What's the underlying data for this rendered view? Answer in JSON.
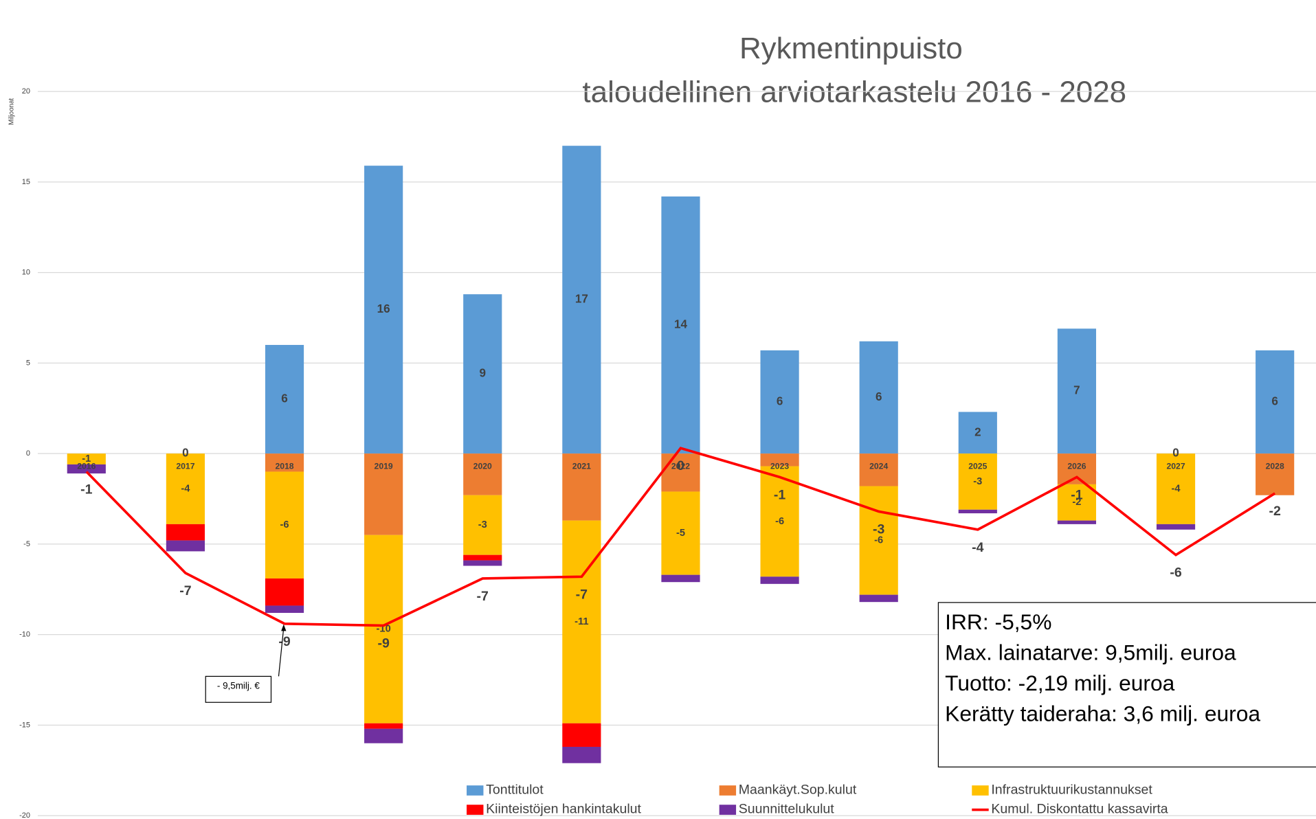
{
  "chart_data": {
    "type": "bar",
    "title": "Rykmentinpuisto",
    "subtitle": "taloudellinen arviotarkastelu 2016 - 2028",
    "y_axis_label": "Miljoonat",
    "categories": [
      "2016",
      "2017",
      "2018",
      "2019",
      "2020",
      "2021",
      "2022",
      "2023",
      "2024",
      "2025",
      "2026",
      "2027",
      "2028"
    ],
    "ylim": [
      -20,
      20
    ],
    "yticks": [
      -20,
      -15,
      -10,
      -5,
      0,
      5,
      10,
      15,
      20
    ],
    "grid": true,
    "legend": "bottom",
    "series": [
      {
        "name": "Tonttitulot",
        "color": "#5b9bd5",
        "values": [
          0,
          0,
          6.0,
          15.9,
          8.8,
          17.0,
          14.2,
          5.7,
          6.2,
          2.3,
          6.9,
          0,
          5.7
        ],
        "value_labels": [
          null,
          "0",
          "6",
          "16",
          "9",
          "17",
          "14",
          "6",
          "6",
          "2",
          "7",
          "0",
          "6"
        ]
      },
      {
        "name": "Maankäyt.Sop.kulut",
        "color": "#ed7d31",
        "values": [
          0,
          0,
          -1.0,
          -4.5,
          -2.3,
          -3.7,
          -2.1,
          -0.7,
          -1.8,
          0,
          -1.7,
          0,
          -2.3
        ]
      },
      {
        "name": "Infrastruktuurikustannukset",
        "color": "#ffc000",
        "values": [
          -0.6,
          -3.9,
          -5.9,
          -10.4,
          -3.3,
          -11.2,
          -4.6,
          -6.1,
          -6.0,
          -3.1,
          -2.0,
          -3.9,
          0
        ],
        "value_labels": [
          "-1",
          "-4",
          "-6",
          "-10",
          "-3",
          "-11",
          "-5",
          "-6",
          "-6",
          "-3",
          "-2",
          "-4",
          null
        ]
      },
      {
        "name": "Kiinteistöjen hankintakulut",
        "color": "#ff0000",
        "values": [
          0,
          -0.9,
          -1.5,
          -0.3,
          -0.3,
          -1.3,
          0,
          0,
          0,
          0,
          0,
          0,
          0
        ]
      },
      {
        "name": "Suunnittelukulut",
        "color": "#7030a0",
        "values": [
          -0.5,
          -0.6,
          -0.4,
          -0.8,
          -0.3,
          -0.9,
          -0.4,
          -0.4,
          -0.4,
          -0.2,
          -0.2,
          -0.3,
          0
        ]
      },
      {
        "name": "Kumul. Diskontattu kassavirta",
        "color": "#ff0000",
        "type": "line",
        "values": [
          -1.0,
          -6.6,
          -9.4,
          -9.5,
          -6.9,
          -6.8,
          0.3,
          -1.3,
          -3.2,
          -4.2,
          -1.3,
          -5.6,
          -2.2
        ],
        "value_labels": [
          "-1",
          "-7",
          "-9",
          "-9",
          "-7",
          "-7",
          "0",
          "-1",
          "-3",
          "-4",
          "-1",
          "-6",
          "-2"
        ]
      }
    ],
    "annotation": "- 9,5milj. €",
    "info_box": [
      "IRR: -5,5%",
      "Max. lainatarve: 9,5milj. euroa",
      "Tuotto: -2,19 milj. euroa",
      "Kerätty taideraha: 3,6 milj. euroa"
    ]
  }
}
